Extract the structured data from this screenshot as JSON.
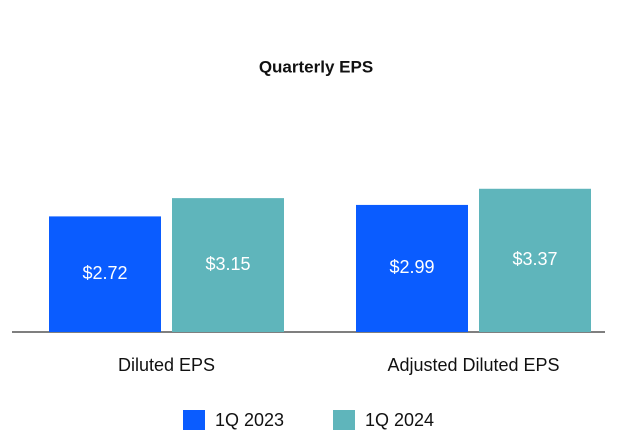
{
  "chart_data": {
    "type": "bar",
    "title": "Quarterly EPS",
    "categories": [
      "Diluted EPS",
      "Adjusted Diluted EPS"
    ],
    "series": [
      {
        "name": "1Q 2023",
        "color": "#0a5cff",
        "values": [
          2.72,
          2.99
        ],
        "value_labels": [
          "$2.72",
          "$2.99"
        ]
      },
      {
        "name": "1Q 2024",
        "color": "#5fb5bb",
        "values": [
          3.15,
          3.37
        ],
        "value_labels": [
          "$3.15",
          "$3.37"
        ]
      }
    ],
    "legend": "bottom"
  }
}
